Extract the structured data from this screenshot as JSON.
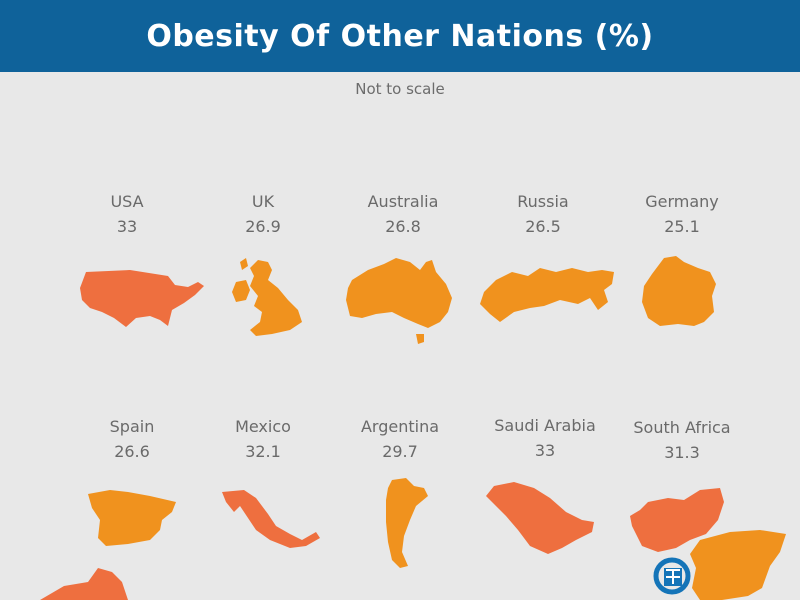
{
  "title": "Obesity Of Other Nations (%)",
  "subtitle": "Not to scale",
  "colors": {
    "header": "#0f629a",
    "orange": "#f0921e",
    "red_orange": "#ee6f3f",
    "logo": "#1474b8"
  },
  "chart_data": {
    "type": "table",
    "unit": "%",
    "countries": [
      {
        "name": "USA",
        "value": "33",
        "color": "red-orange"
      },
      {
        "name": "UK",
        "value": "26.9",
        "color": "orange"
      },
      {
        "name": "Australia",
        "value": "26.8",
        "color": "orange"
      },
      {
        "name": "Russia",
        "value": "26.5",
        "color": "orange"
      },
      {
        "name": "Germany",
        "value": "25.1",
        "color": "orange"
      },
      {
        "name": "Spain",
        "value": "26.6",
        "color": "orange"
      },
      {
        "name": "Mexico",
        "value": "32.1",
        "color": "red-orange"
      },
      {
        "name": "Argentina",
        "value": "29.7",
        "color": "orange"
      },
      {
        "name": "Saudi Arabia",
        "value": "33",
        "color": "red-orange"
      },
      {
        "name": "South Africa",
        "value": "31.3",
        "color": "red-orange"
      }
    ]
  }
}
